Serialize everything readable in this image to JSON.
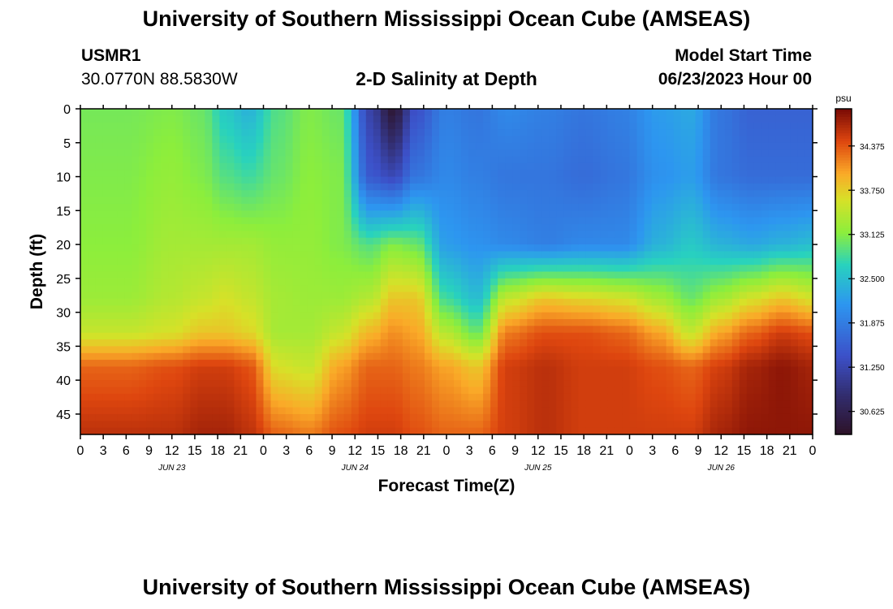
{
  "header": {
    "title": "University of Southern Mississippi Ocean Cube (AMSEAS)",
    "station": "USMR1",
    "coords": "30.0770N  88.5830W",
    "chart_title": "2-D Salinity at Depth",
    "model_start_label": "Model Start Time",
    "model_start_value": "06/23/2023 Hour 00"
  },
  "footer": {
    "title": "University of Southern Mississippi Ocean Cube (AMSEAS)"
  },
  "chart_data": {
    "type": "heatmap",
    "title": "2-D Salinity at Depth",
    "xlabel": "Forecast Time(Z)",
    "ylabel": "Depth (ft)",
    "x_hours_range": [
      0,
      96
    ],
    "y_depth_range_ft": [
      0,
      48
    ],
    "y_ticks": [
      0,
      5,
      10,
      15,
      20,
      25,
      30,
      35,
      40,
      45
    ],
    "x_tick_labels": [
      "0",
      "3",
      "6",
      "9",
      "12",
      "15",
      "18",
      "21",
      "0",
      "3",
      "6",
      "9",
      "12",
      "15",
      "18",
      "21",
      "0",
      "3",
      "6",
      "9",
      "12",
      "15",
      "18",
      "21",
      "0",
      "3",
      "6",
      "9",
      "12",
      "15",
      "18",
      "21",
      "0"
    ],
    "date_labels": [
      {
        "label": "JUN 23",
        "hour": 12
      },
      {
        "label": "JUN 24",
        "hour": 36
      },
      {
        "label": "JUN 25",
        "hour": 60
      },
      {
        "label": "JUN 26",
        "hour": 84
      }
    ],
    "colorbar": {
      "unit": "psu",
      "min": 30.3,
      "max": 34.9,
      "ticks": [
        "34.375",
        "33.750",
        "33.125",
        "32.500",
        "31.875",
        "31.250",
        "30.625"
      ]
    },
    "salinity_profiles": {
      "depth_nodes_ft": [
        0,
        10,
        20,
        28,
        33,
        38,
        48
      ],
      "profiles": [
        {
          "hour": 0,
          "psu": [
            33.05,
            33.1,
            33.15,
            33.25,
            33.5,
            34.3,
            34.6
          ]
        },
        {
          "hour": 6,
          "psu": [
            33.05,
            33.1,
            33.15,
            33.25,
            33.5,
            34.3,
            34.6
          ]
        },
        {
          "hour": 12,
          "psu": [
            33.1,
            33.2,
            33.3,
            33.4,
            33.6,
            34.4,
            34.6
          ]
        },
        {
          "hour": 16,
          "psu": [
            33.0,
            33.1,
            33.3,
            33.5,
            33.8,
            34.5,
            34.7
          ]
        },
        {
          "hour": 19,
          "psu": [
            32.6,
            32.9,
            33.3,
            33.6,
            33.8,
            34.5,
            34.7
          ]
        },
        {
          "hour": 22,
          "psu": [
            32.4,
            32.8,
            33.3,
            33.5,
            33.7,
            34.4,
            34.6
          ]
        },
        {
          "hour": 26,
          "psu": [
            32.9,
            33.0,
            33.2,
            33.3,
            33.3,
            33.6,
            34.3
          ]
        },
        {
          "hour": 30,
          "psu": [
            33.1,
            33.15,
            33.2,
            33.25,
            33.3,
            33.5,
            34.2
          ]
        },
        {
          "hour": 34,
          "psu": [
            33.0,
            33.1,
            33.1,
            33.25,
            33.5,
            34.0,
            34.4
          ]
        },
        {
          "hour": 38,
          "psu": [
            31.2,
            31.5,
            32.9,
            33.4,
            33.9,
            34.3,
            34.5
          ]
        },
        {
          "hour": 41,
          "psu": [
            30.4,
            31.3,
            33.1,
            33.8,
            34.1,
            34.3,
            34.5
          ]
        },
        {
          "hour": 44,
          "psu": [
            31.4,
            31.8,
            33.0,
            33.8,
            34.0,
            34.2,
            34.4
          ]
        },
        {
          "hour": 48,
          "psu": [
            31.9,
            32.0,
            32.2,
            32.8,
            33.4,
            34.0,
            34.3
          ]
        },
        {
          "hour": 52,
          "psu": [
            31.8,
            31.9,
            32.1,
            32.5,
            33.0,
            33.8,
            34.3
          ]
        },
        {
          "hour": 56,
          "psu": [
            32.0,
            31.8,
            32.0,
            33.5,
            34.2,
            34.5,
            34.5
          ]
        },
        {
          "hour": 61,
          "psu": [
            31.9,
            31.8,
            31.9,
            33.8,
            34.4,
            34.6,
            34.6
          ]
        },
        {
          "hour": 66,
          "psu": [
            31.8,
            31.7,
            32.0,
            33.7,
            34.4,
            34.5,
            34.5
          ]
        },
        {
          "hour": 71,
          "psu": [
            31.9,
            31.8,
            32.0,
            33.6,
            34.3,
            34.5,
            34.5
          ]
        },
        {
          "hour": 76,
          "psu": [
            32.2,
            32.1,
            32.4,
            33.3,
            34.0,
            34.4,
            34.5
          ]
        },
        {
          "hour": 80,
          "psu": [
            32.3,
            32.2,
            32.6,
            33.0,
            33.5,
            34.3,
            34.5
          ]
        },
        {
          "hour": 84,
          "psu": [
            31.8,
            31.8,
            32.4,
            33.3,
            34.0,
            34.5,
            34.7
          ]
        },
        {
          "hour": 88,
          "psu": [
            31.6,
            31.7,
            32.3,
            33.6,
            34.3,
            34.7,
            34.8
          ]
        },
        {
          "hour": 92,
          "psu": [
            31.6,
            31.7,
            32.4,
            33.8,
            34.5,
            34.8,
            34.8
          ]
        },
        {
          "hour": 96,
          "psu": [
            31.6,
            31.7,
            32.5,
            33.6,
            34.4,
            34.7,
            34.8
          ]
        }
      ]
    }
  }
}
